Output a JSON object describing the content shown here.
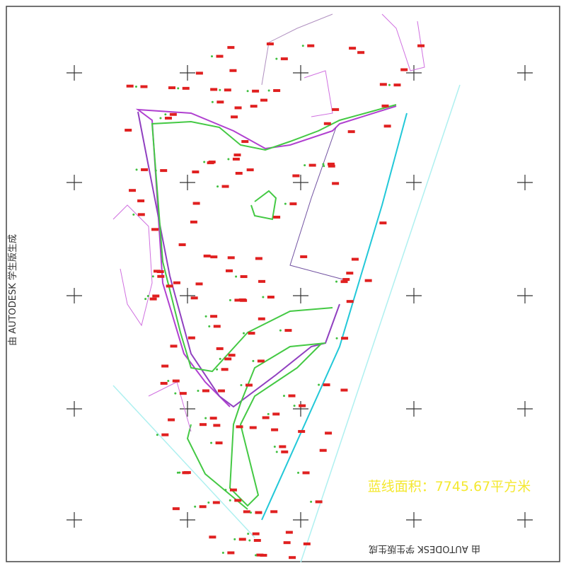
{
  "watermark_left": "由 AUTODESK 学生版生成",
  "watermark_bottom": "由 AUTODESK 学生版生成",
  "annotation": "蓝线面积：7745.67平方米"
}
